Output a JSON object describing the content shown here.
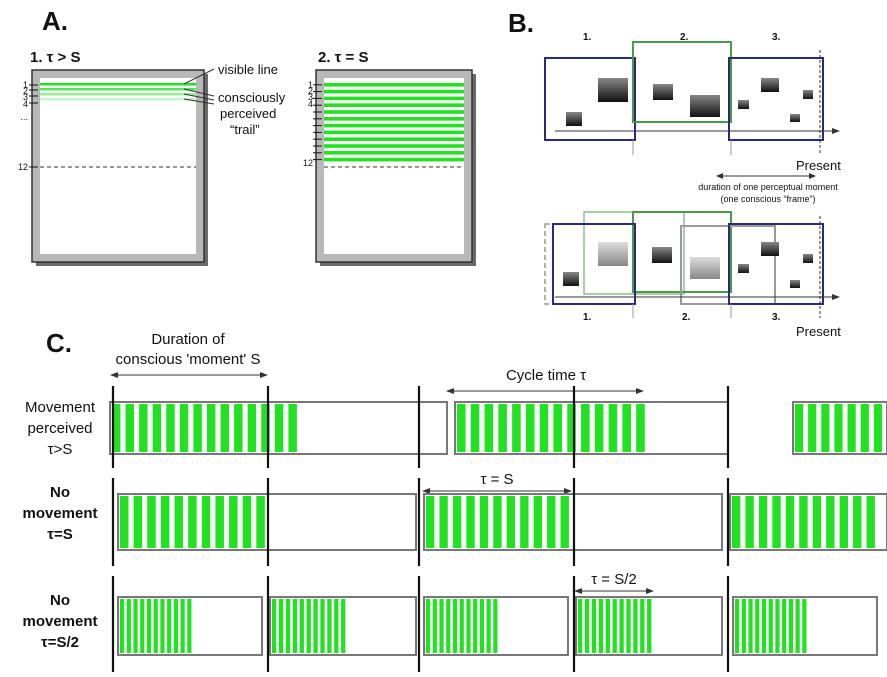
{
  "panel_a": {
    "label": "A.",
    "screen1": {
      "title": "1. τ > S",
      "ticks": [
        "1",
        "2",
        "3",
        "4",
        "...",
        "12"
      ]
    },
    "screen2": {
      "title": "2. τ = S",
      "ticks": [
        "1",
        "2",
        "3",
        "4",
        "12"
      ]
    },
    "annotations": {
      "visible_line": "visible line",
      "trail_1": "consciously",
      "trail_2": "perceived",
      "trail_3": "“trail”"
    }
  },
  "panel_b": {
    "label": "B.",
    "top_frame_labels": [
      "1.",
      "2.",
      "3."
    ],
    "bottom_frame_labels": [
      "1.",
      "2.",
      "3."
    ],
    "present_top": "Present",
    "present_bottom": "Present",
    "duration_1": "duration of one perceptual moment",
    "duration_2": "(one conscious “frame”)"
  },
  "panel_c": {
    "label": "C.",
    "duration_1": "Duration of",
    "duration_2": "conscious 'moment' S",
    "cycle_label": "Cycle time τ",
    "tau_eq_s": "τ = S",
    "tau_half": "τ = S/2",
    "row1": [
      "Movement",
      "perceived",
      "τ>S"
    ],
    "row2": [
      "No",
      "movement",
      "τ=S"
    ],
    "row3": [
      "No",
      "movement",
      "τ=S/2"
    ]
  },
  "colors": {
    "green": "#22e022",
    "light_green": "#c8f5c8",
    "navy": "#2a2a7a",
    "frame_green": "#4a9a4a",
    "gray_frame": "#888888"
  }
}
